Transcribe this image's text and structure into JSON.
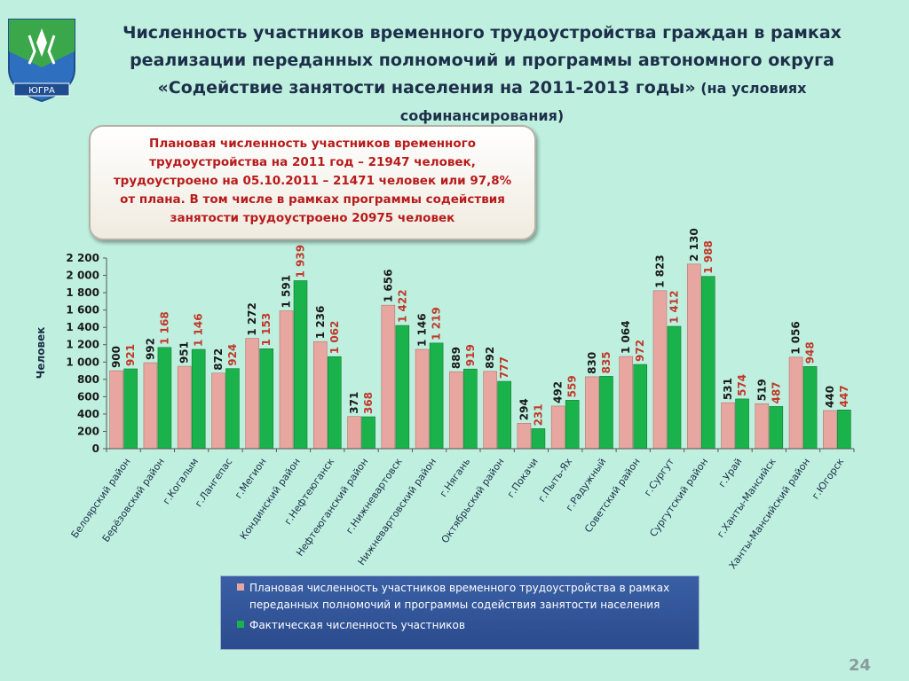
{
  "title": {
    "line1": "Численность участников временного трудоустройства граждан в рамках",
    "line2": "реализации переданных полномочий и программы автономного округа",
    "line3_main": "«Содействие занятости населения на 2011-2013 годы»",
    "line3_tail": " (на условиях",
    "line4": "софинансирования)"
  },
  "emblem": {
    "ribbon_text": "ЮГРА"
  },
  "info_box": {
    "lines": [
      "Плановая численность участников временного",
      "трудоустройства на 2011 год – 21947 человек,",
      "трудоустроено на 05.10.2011 – 21471 человек или 97,8%",
      "от плана. В том числе в рамках программы содействия",
      "занятости трудоустроено 20975 человек"
    ]
  },
  "colors": {
    "background": "#bff0df",
    "planned_bar": "#e8a6a1",
    "actual_bar": "#1ab34b",
    "planned_label": "#1a1a1a",
    "actual_label": "#c0392b",
    "info_text": "#b81b1b",
    "legend_bg": "#3a5fa4"
  },
  "chart_data": {
    "type": "bar",
    "ylabel": "Человек",
    "ylim": [
      0,
      2200
    ],
    "yticks": [
      "0",
      "200",
      "400",
      "600",
      "800",
      "1 000",
      "1 200",
      "1 400",
      "1 600",
      "1 800",
      "2 000",
      "2 200"
    ],
    "ytick_values": [
      0,
      200,
      400,
      600,
      800,
      1000,
      1200,
      1400,
      1600,
      1800,
      2000,
      2200
    ],
    "categories": [
      "Белоярский район",
      "Берёзовский район",
      "г.Когалым",
      "г.Лангепас",
      "г.Мегион",
      "Кондинский район",
      "г.Нефтеюганск",
      "Нефтеюганский район",
      "г.Нижневартовск",
      "Нижневартовский район",
      "г.Нягань",
      "Октябрьский район",
      "г.Покачи",
      "г.Пыть-Ях",
      "г.Радужный",
      "Советский район",
      "г.Сургут",
      "Сургутский район",
      "г.Урай",
      "г.Ханты-Мансийск",
      "Ханты-Мансийский район",
      "г.Югорск"
    ],
    "series": [
      {
        "name": "Плановая численность участников временного трудоустройства в рамках переданных полномочий и программы содействия занятости населения",
        "values": [
          900,
          992,
          951,
          872,
          1272,
          1591,
          1236,
          371,
          1656,
          1146,
          889,
          892,
          294,
          492,
          830,
          1064,
          1823,
          2130,
          531,
          519,
          1056,
          440
        ],
        "labels": [
          "900",
          "992",
          "951",
          "872",
          "1 272",
          "1 591",
          "1 236",
          "371",
          "1 656",
          "1 146",
          "889",
          "892",
          "294",
          "492",
          "830",
          "1 064",
          "1 823",
          "2 130",
          "531",
          "519",
          "1 056",
          "440"
        ]
      },
      {
        "name": "Фактическая численность участников",
        "values": [
          921,
          1168,
          1146,
          924,
          1153,
          1939,
          1062,
          368,
          1422,
          1219,
          919,
          777,
          231,
          559,
          835,
          972,
          1412,
          1988,
          574,
          487,
          948,
          447
        ],
        "labels": [
          "921",
          "1 168",
          "1 146",
          "924",
          "1 153",
          "1 939",
          "1 062",
          "368",
          "1 422",
          "1 219",
          "919",
          "777",
          "231",
          "559",
          "835",
          "972",
          "1 412",
          "1 988",
          "574",
          "487",
          "948",
          "447"
        ]
      }
    ]
  },
  "legend": {
    "planned_line1": "Плановая численность участников временного трудоустройства в рамках",
    "planned_line2": "переданных полномочий и программы содействия занятости населения",
    "actual": "Фактическая численность участников"
  },
  "page_number": "24"
}
